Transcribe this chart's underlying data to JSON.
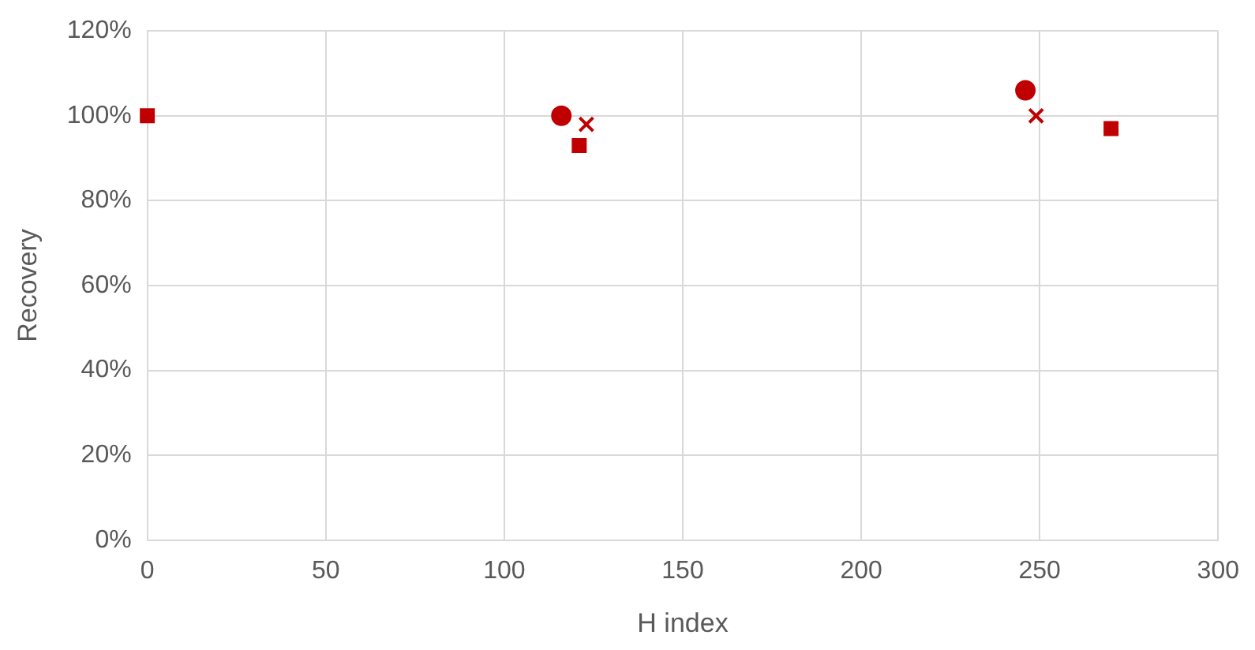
{
  "chart_data": {
    "type": "scatter",
    "xlabel": "H index",
    "ylabel": "Recovery",
    "xlim": [
      0,
      300
    ],
    "xticks": [
      0,
      50,
      100,
      150,
      200,
      250,
      300
    ],
    "ylim": [
      0,
      120
    ],
    "yticks": [
      {
        "value": 0,
        "label": "0%"
      },
      {
        "value": 20,
        "label": "20%"
      },
      {
        "value": 40,
        "label": "40%"
      },
      {
        "value": 60,
        "label": "60%"
      },
      {
        "value": 80,
        "label": "80%"
      },
      {
        "value": 100,
        "label": "100%"
      },
      {
        "value": 120,
        "label": "120%"
      }
    ],
    "grid": true,
    "legend": false,
    "series": [
      {
        "color": "#c00000",
        "marker": "square",
        "x": [
          0
        ],
        "values": [
          100
        ]
      },
      {
        "color": "#c00000",
        "marker": "circle",
        "x": [
          116,
          246
        ],
        "values": [
          100,
          106
        ]
      },
      {
        "color": "#c00000",
        "marker": "cross",
        "x": [
          123,
          249
        ],
        "values": [
          98,
          100
        ]
      },
      {
        "color": "#c00000",
        "marker": "square",
        "x": [
          121,
          270
        ],
        "values": [
          93,
          97
        ]
      }
    ]
  }
}
